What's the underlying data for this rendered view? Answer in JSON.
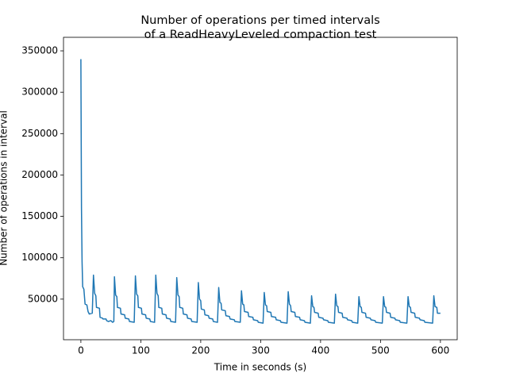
{
  "chart_data": {
    "type": "line",
    "title": [
      "Number of operations per timed intervals",
      "of a ReadHeavyLeveled compaction test"
    ],
    "x_label": "Time in seconds (s)",
    "y_label": "Number of operations in interval",
    "xlim": [
      -29,
      628
    ],
    "ylim": [
      950,
      366350
    ],
    "xticks": [
      0,
      100,
      200,
      300,
      400,
      500,
      600
    ],
    "yticks": [
      50000,
      100000,
      150000,
      200000,
      250000,
      300000,
      350000
    ],
    "grid": false,
    "series": [
      {
        "color": "#1f77b4",
        "x": [
          0,
          1,
          2,
          3,
          5,
          7,
          10,
          12,
          14,
          19,
          21,
          23,
          25,
          26,
          31,
          32,
          36,
          37,
          42,
          43,
          46,
          50,
          53,
          55,
          56,
          58,
          60,
          61,
          66,
          67,
          73,
          74,
          80,
          81,
          89,
          91,
          93,
          95,
          96,
          101,
          102,
          108,
          109,
          115,
          116,
          123,
          125,
          127,
          129,
          130,
          135,
          136,
          142,
          143,
          149,
          150,
          158,
          160,
          162,
          164,
          165,
          170,
          171,
          177,
          178,
          184,
          185,
          194,
          196,
          198,
          200,
          201,
          206,
          207,
          213,
          214,
          220,
          221,
          228,
          230,
          232,
          234,
          235,
          241,
          242,
          248,
          249,
          256,
          257,
          266,
          268,
          270,
          272,
          273,
          279,
          280,
          287,
          288,
          295,
          296,
          304,
          306,
          308,
          310,
          311,
          317,
          318,
          325,
          326,
          333,
          334,
          344,
          346,
          348,
          350,
          351,
          357,
          358,
          365,
          366,
          373,
          374,
          383,
          385,
          387,
          389,
          390,
          396,
          397,
          404,
          405,
          412,
          413,
          423,
          425,
          427,
          429,
          430,
          436,
          437,
          444,
          445,
          452,
          453,
          462,
          464,
          466,
          468,
          469,
          475,
          476,
          483,
          484,
          491,
          492,
          503,
          505,
          507,
          509,
          510,
          516,
          517,
          524,
          525,
          532,
          533,
          544,
          546,
          548,
          550,
          551,
          557,
          558,
          565,
          566,
          573,
          574,
          587,
          589,
          591,
          594,
          595,
          600
        ],
        "values": [
          340000,
          160000,
          95000,
          65000,
          62000,
          44000,
          43000,
          35000,
          32000,
          33000,
          79000,
          57000,
          54000,
          40000,
          39000,
          28000,
          27000,
          26000,
          26000,
          24000,
          23000,
          24000,
          22000,
          23000,
          77000,
          55000,
          53000,
          40000,
          39000,
          32000,
          31000,
          27000,
          26000,
          23000,
          22000,
          78000,
          56000,
          54000,
          40000,
          39000,
          32000,
          31000,
          27000,
          26000,
          23000,
          22000,
          79000,
          57000,
          54000,
          40000,
          39000,
          32000,
          31000,
          27000,
          26000,
          23000,
          22000,
          76000,
          55000,
          53000,
          40000,
          39000,
          32000,
          31000,
          27000,
          26000,
          23000,
          22000,
          70000,
          50000,
          48000,
          38000,
          37000,
          31000,
          30000,
          27000,
          26000,
          23000,
          22000,
          64000,
          46000,
          45000,
          37000,
          36000,
          30000,
          29000,
          26000,
          25000,
          23000,
          22000,
          60000,
          44000,
          43000,
          35000,
          34000,
          29000,
          28000,
          25000,
          24000,
          22000,
          21000,
          58000,
          43000,
          42000,
          35000,
          34000,
          29000,
          28000,
          25000,
          24000,
          22000,
          21000,
          59000,
          44000,
          42000,
          35000,
          34000,
          29000,
          28000,
          25000,
          24000,
          22000,
          21000,
          54000,
          41000,
          40000,
          34000,
          33000,
          28000,
          27000,
          25000,
          24000,
          22000,
          21000,
          56000,
          42000,
          41000,
          34000,
          33000,
          28000,
          27000,
          25000,
          24000,
          22000,
          21000,
          53000,
          41000,
          40000,
          34000,
          33000,
          28000,
          27000,
          25000,
          24000,
          22000,
          21000,
          53000,
          41000,
          40000,
          34000,
          33000,
          28000,
          27000,
          25000,
          24000,
          22000,
          21000,
          53000,
          41000,
          40000,
          34000,
          33000,
          28000,
          27000,
          25000,
          24000,
          22000,
          21000,
          54000,
          41000,
          40000,
          33000,
          33000
        ]
      }
    ]
  }
}
